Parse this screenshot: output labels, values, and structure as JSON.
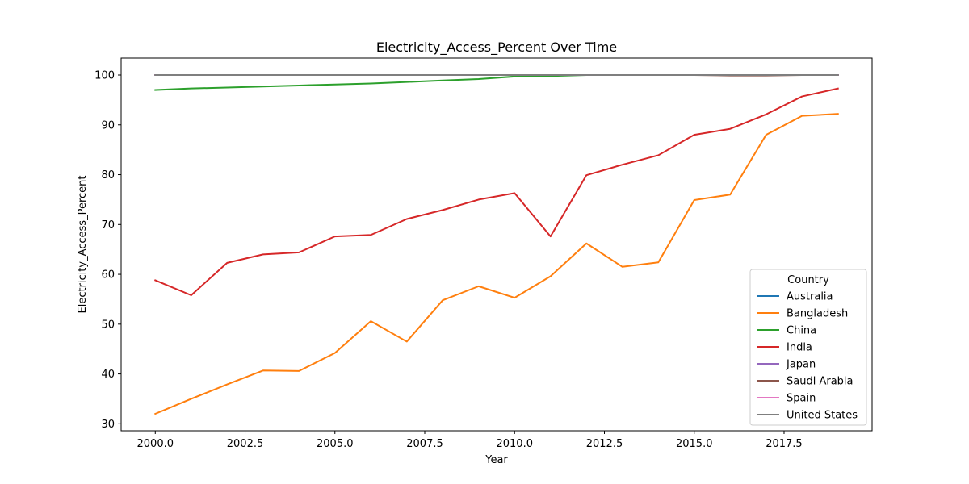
{
  "chart_data": {
    "type": "line",
    "title": "Electricity_Access_Percent Over Time",
    "xlabel": "Year",
    "ylabel": "Electricity_Access_Percent",
    "xlim": [
      1999.05,
      2019.95
    ],
    "ylim": [
      28.6,
      103.4
    ],
    "x_ticks": [
      2000,
      2002.5,
      2005,
      2007.5,
      2010,
      2012.5,
      2015,
      2017.5
    ],
    "x_tick_labels": [
      "2000.0",
      "2002.5",
      "2005.0",
      "2007.5",
      "2010.0",
      "2012.5",
      "2015.0",
      "2017.5"
    ],
    "y_ticks": [
      30,
      40,
      50,
      60,
      70,
      80,
      90,
      100
    ],
    "y_tick_labels": [
      "30",
      "40",
      "50",
      "60",
      "70",
      "80",
      "90",
      "100"
    ],
    "grid": false,
    "legend": {
      "title": "Country",
      "placement": "lower-right"
    },
    "x": [
      2000,
      2001,
      2002,
      2003,
      2004,
      2005,
      2006,
      2007,
      2008,
      2009,
      2010,
      2011,
      2012,
      2013,
      2014,
      2015,
      2016,
      2017,
      2018,
      2019
    ],
    "series": [
      {
        "name": "Australia",
        "color": "#1f77b4",
        "values": [
          100,
          100,
          100,
          100,
          100,
          100,
          100,
          100,
          100,
          100,
          100,
          100,
          100,
          100,
          100,
          100,
          100,
          100,
          100,
          100
        ]
      },
      {
        "name": "Bangladesh",
        "color": "#ff7f0e",
        "values": [
          32.0,
          35.0,
          37.9,
          40.7,
          40.6,
          44.2,
          50.6,
          46.5,
          54.8,
          57.6,
          55.3,
          59.6,
          66.2,
          61.5,
          62.4,
          74.9,
          76.0,
          88.0,
          91.8,
          92.2
        ]
      },
      {
        "name": "China",
        "color": "#2ca02c",
        "values": [
          97.0,
          97.3,
          97.5,
          97.7,
          97.9,
          98.1,
          98.3,
          98.6,
          98.9,
          99.2,
          99.7,
          99.8,
          100,
          100,
          100,
          100,
          100,
          100,
          100,
          100
        ]
      },
      {
        "name": "India",
        "color": "#d62728",
        "values": [
          58.8,
          55.8,
          62.3,
          64.0,
          64.4,
          67.6,
          67.9,
          71.1,
          72.9,
          75.0,
          76.3,
          67.6,
          79.9,
          82.0,
          83.9,
          88.0,
          89.2,
          92.1,
          95.7,
          97.3
        ]
      },
      {
        "name": "Japan",
        "color": "#9467bd",
        "values": [
          100,
          100,
          100,
          100,
          100,
          100,
          100,
          100,
          100,
          100,
          100,
          100,
          100,
          100,
          100,
          100,
          100,
          100,
          100,
          100
        ]
      },
      {
        "name": "Saudi Arabia",
        "color": "#8c564b",
        "values": [
          100,
          100,
          100,
          100,
          100,
          100,
          100,
          100,
          100,
          100,
          100,
          100,
          100,
          100,
          100,
          100,
          99.9,
          99.9,
          100,
          100
        ]
      },
      {
        "name": "Spain",
        "color": "#e377c2",
        "values": [
          100,
          100,
          100,
          100,
          100,
          100,
          100,
          100,
          100,
          100,
          100,
          100,
          100,
          100,
          100,
          100,
          100,
          100,
          100,
          100
        ]
      },
      {
        "name": "United States",
        "color": "#7f7f7f",
        "values": [
          100,
          100,
          100,
          100,
          100,
          100,
          100,
          100,
          100,
          100,
          100,
          100,
          100,
          100,
          100,
          100,
          100,
          100,
          100,
          100
        ]
      }
    ]
  }
}
